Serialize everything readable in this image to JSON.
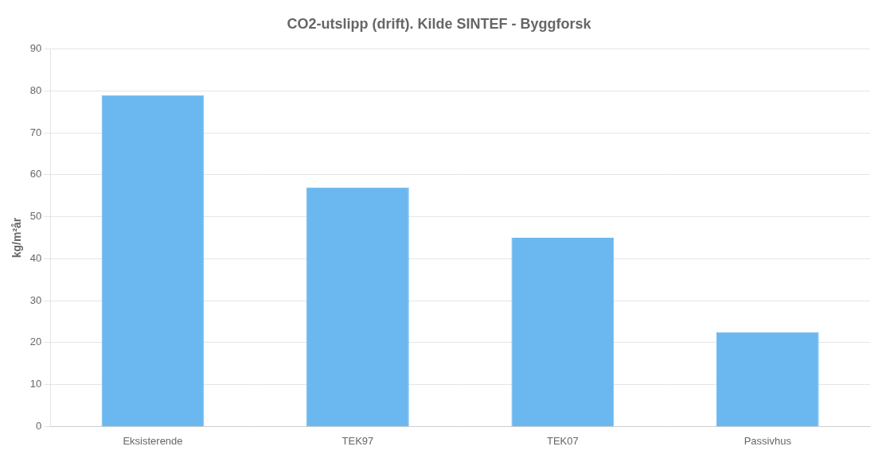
{
  "chart_data": {
    "type": "bar",
    "title": "CO2-utslipp (drift). Kilde SINTEF - Byggforsk",
    "categories": [
      "Eksisterende",
      "TEK97",
      "TEK07",
      "Passivhus"
    ],
    "values": [
      79,
      57,
      45,
      22.5
    ],
    "color": "#6BB8F0",
    "ylabel": "kg/m²år",
    "ylim": [
      0,
      90
    ],
    "yticks": [
      0,
      10,
      20,
      30,
      40,
      50,
      60,
      70,
      80,
      90
    ],
    "grid": true
  }
}
